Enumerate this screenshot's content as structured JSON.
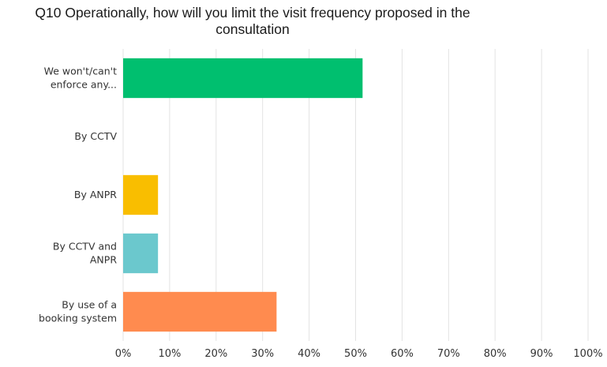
{
  "chart_data": {
    "type": "bar",
    "orientation": "horizontal",
    "title": "Q10 Operationally, how will you limit the visit frequency proposed in the consultation",
    "categories": [
      [
        "We won't/can't",
        "enforce any..."
      ],
      [
        "By CCTV"
      ],
      [
        "By ANPR"
      ],
      [
        "By CCTV and",
        "ANPR"
      ],
      [
        "By use of a",
        "booking system"
      ]
    ],
    "values": [
      51.5,
      0,
      7.5,
      7.5,
      33
    ],
    "colors": [
      "#00bf6f",
      "#6bc8cd",
      "#f9be00",
      "#6bc8cd",
      "#ff8b4f"
    ],
    "xlim": [
      0,
      100
    ],
    "xticks": [
      "0%",
      "10%",
      "20%",
      "30%",
      "40%",
      "50%",
      "60%",
      "70%",
      "80%",
      "90%",
      "100%"
    ],
    "grid": true,
    "xlabel": "",
    "ylabel": ""
  }
}
